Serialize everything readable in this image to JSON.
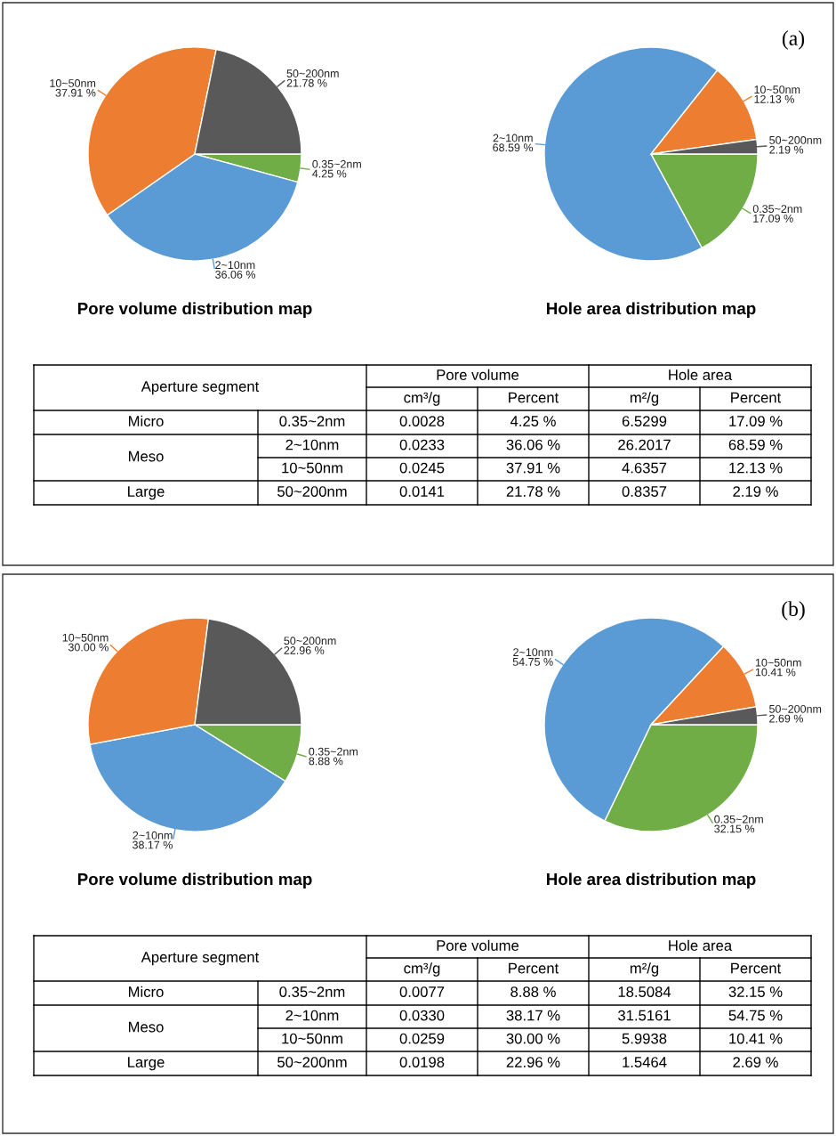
{
  "chart_data": [
    {
      "type": "pie",
      "title": "Pore volume distribution map",
      "categories": [
        "0.35~2nm",
        "2~10nm",
        "10~50nm",
        "50~200nm"
      ],
      "values": [
        4.25,
        36.06,
        37.91,
        21.78
      ],
      "colors": [
        "#70ad47",
        "#5b9bd5",
        "#ed7d31",
        "#595959"
      ],
      "value_labels": [
        "4.25 %",
        "36.06 %",
        "37.91 %",
        "21.78 %"
      ]
    },
    {
      "type": "pie",
      "title": "Hole area distribution map",
      "categories": [
        "0.35~2nm",
        "2~10nm",
        "10~50nm",
        "50~200nm"
      ],
      "values": [
        17.09,
        68.59,
        12.13,
        2.19
      ],
      "colors": [
        "#70ad47",
        "#5b9bd5",
        "#ed7d31",
        "#595959"
      ],
      "value_labels": [
        "17.09 %",
        "68.59 %",
        "12.13 %",
        "2.19 %"
      ],
      "annotations": [
        "(a)"
      ]
    },
    {
      "type": "other",
      "annotations": [
        "Aperture segment",
        "Pore volume",
        "Hole area",
        "cm³/g",
        "Percent",
        "m²/g",
        "Percent",
        "Micro",
        "0.35~2nm",
        "0.0028",
        "4.25 %",
        "6.5299",
        "17.09 %",
        "Meso",
        "2~10nm",
        "0.0233",
        "36.06 %",
        "26.2017",
        "68.59 %",
        "10~50nm",
        "0.0245",
        "37.91 %",
        "4.6357",
        "12.13 %",
        "Large",
        "50~200nm",
        "0.0141",
        "21.78 %",
        "0.8357",
        "2.19 %"
      ]
    },
    {
      "type": "pie",
      "title": "Pore volume distribution map",
      "categories": [
        "0.35~2nm",
        "2~10nm",
        "10~50nm",
        "50~200nm"
      ],
      "values": [
        8.88,
        38.17,
        30.0,
        22.96
      ],
      "colors": [
        "#70ad47",
        "#5b9bd5",
        "#ed7d31",
        "#595959"
      ],
      "value_labels": [
        "8.88 %",
        "38.17 %",
        "30.00 %",
        "22.96 %"
      ]
    },
    {
      "type": "pie",
      "title": "Hole area distribution map",
      "categories": [
        "0.35~2nm",
        "2~10nm",
        "10~50nm",
        "50~200nm"
      ],
      "values": [
        32.15,
        54.75,
        10.41,
        2.69
      ],
      "colors": [
        "#70ad47",
        "#5b9bd5",
        "#ed7d31",
        "#595959"
      ],
      "value_labels": [
        "32.15 %",
        "54.75 %",
        "10.41 %",
        "2.69 %"
      ],
      "annotations": [
        "(b)"
      ]
    },
    {
      "type": "other",
      "annotations": [
        "Aperture segment",
        "Pore volume",
        "Hole area",
        "cm³/g",
        "Percent",
        "m²/g",
        "Percent",
        "Micro",
        "0.35~2nm",
        "0.0077",
        "8.88 %",
        "18.5084",
        "32.15 %",
        "Meso",
        "2~10nm",
        "0.0330",
        "38.17 %",
        "31.5161",
        "54.75 %",
        "10~50nm",
        "0.0259",
        "30.00 %",
        "5.9938",
        "10.41 %",
        "Large",
        "50~200nm",
        "0.0198",
        "22.96 %",
        "1.5464",
        "2.69 %"
      ]
    }
  ]
}
